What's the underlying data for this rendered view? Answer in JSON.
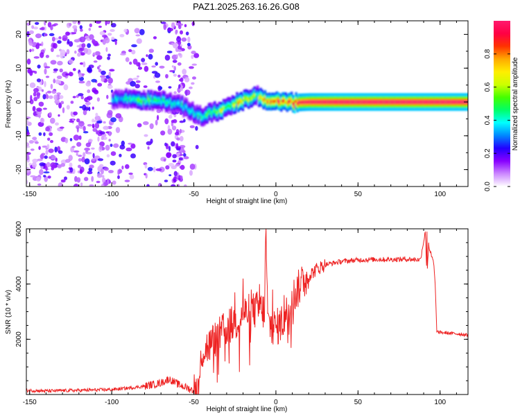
{
  "title": "PAZ1.2025.263.16.26.G08",
  "chart_data": [
    {
      "type": "heatmap",
      "title": "PAZ1.2025.263.16.26.G08",
      "xlabel": "Height of straight line (km)",
      "ylabel": "Frequency (Hz)",
      "xlim": [
        -152,
        117
      ],
      "ylim": [
        -25,
        24
      ],
      "x_ticks": [
        -150,
        -100,
        -50,
        0,
        50,
        100
      ],
      "y_ticks": [
        -20,
        -10,
        0,
        10,
        20
      ],
      "colorbar": {
        "label": "Normalized spectral amplitude",
        "range": [
          0,
          1
        ],
        "ticks": [
          0.0,
          0.2,
          0.4,
          0.6,
          0.8
        ],
        "colors": [
          "#ffffff",
          "#cc88ff",
          "#8800ff",
          "#2200ff",
          "#0088ff",
          "#00ffff",
          "#00ff66",
          "#44ff00",
          "#ccff00",
          "#ffee00",
          "#ffaa00",
          "#ff3300",
          "#ff0044",
          "#ff1a6e"
        ]
      },
      "ridge": {
        "x": [
          -100,
          -90,
          -80,
          -70,
          -60,
          -55,
          -50,
          -45,
          -40,
          -35,
          -30,
          -25,
          -20,
          -15,
          -12,
          -10,
          -5,
          0,
          5,
          10,
          20,
          40,
          60,
          80,
          100,
          117
        ],
        "y": [
          0.8,
          1.0,
          0.5,
          0.3,
          -0.8,
          -1.8,
          -3.5,
          -4.2,
          -3.2,
          -2.5,
          -1.5,
          -0.2,
          0.6,
          0.8,
          2.3,
          1.0,
          0.2,
          0.2,
          0.0,
          -0.2,
          0.0,
          0.0,
          0.0,
          0.0,
          0.0,
          0.0
        ],
        "amplitude": [
          0.35,
          0.45,
          0.5,
          0.5,
          0.45,
          0.4,
          0.45,
          0.5,
          0.55,
          0.6,
          0.6,
          0.7,
          0.75,
          0.65,
          0.5,
          0.7,
          0.8,
          0.85,
          0.9,
          0.95,
          0.98,
          1.0,
          1.0,
          1.0,
          1.0,
          1.0
        ]
      },
      "noise_region_km": [
        -152,
        -48
      ]
    },
    {
      "type": "line",
      "xlabel": "Height of straight line (km)",
      "ylabel": "SNR (10 * v/v)",
      "xlim": [
        -152,
        117
      ],
      "ylim": [
        0,
        6000
      ],
      "x_ticks": [
        -150,
        -100,
        -50,
        0,
        50,
        100
      ],
      "y_ticks": [
        2000,
        4000,
        6000
      ],
      "series": [
        {
          "name": "SNR",
          "color": "#ee2222",
          "x": [
            -152,
            -140,
            -120,
            -100,
            -90,
            -80,
            -70,
            -65,
            -60,
            -50,
            -47,
            -45,
            -40,
            -35,
            -30,
            -25,
            -20,
            -15,
            -10,
            -7,
            -6,
            -5,
            0,
            5,
            10,
            15,
            20,
            25,
            30,
            40,
            50,
            60,
            70,
            80,
            88,
            91,
            92,
            93,
            95,
            96,
            97,
            98,
            99,
            100,
            110,
            117
          ],
          "y": [
            150,
            130,
            150,
            180,
            230,
            300,
            420,
            560,
            380,
            140,
            280,
            1550,
            1800,
            2100,
            2400,
            2600,
            2900,
            3000,
            3100,
            3000,
            6000,
            2600,
            2400,
            2700,
            3500,
            3950,
            4300,
            4550,
            4700,
            4820,
            4870,
            4890,
            4890,
            4900,
            4880,
            5900,
            4300,
            5400,
            4950,
            4800,
            4000,
            2300,
            2250,
            2250,
            2200,
            2150
          ]
        }
      ]
    }
  ]
}
